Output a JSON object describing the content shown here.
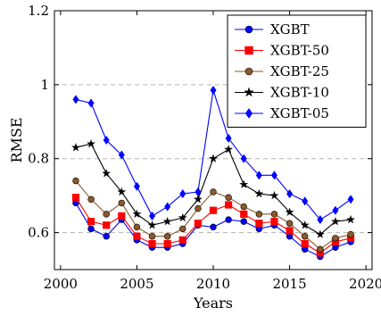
{
  "chart_data": {
    "type": "line",
    "title": "",
    "xlabel": "Years",
    "ylabel": "RMSE",
    "xlim": [
      1999.6,
      2020.4
    ],
    "ylim": [
      0.5,
      1.2
    ],
    "xticks": [
      2000,
      2005,
      2010,
      2015,
      2020
    ],
    "yticks": [
      0.6,
      0.8,
      1,
      1.2
    ],
    "ytick_labels": [
      "0.6",
      "0.8",
      "1",
      "1.2"
    ],
    "grid": "horizontal dashed",
    "legend_position": "top-right",
    "x": [
      2001,
      2002,
      2003,
      2004,
      2005,
      2006,
      2007,
      2008,
      2009,
      2010,
      2011,
      2012,
      2013,
      2014,
      2015,
      2016,
      2017,
      2018,
      2019
    ],
    "series": [
      {
        "name": "XGBT",
        "color": "#0000ff",
        "marker": "circle",
        "values": [
          0.68,
          0.61,
          0.59,
          0.635,
          0.58,
          0.56,
          0.56,
          0.57,
          0.62,
          0.615,
          0.635,
          0.63,
          0.61,
          0.62,
          0.59,
          0.555,
          0.535,
          0.56,
          0.575
        ]
      },
      {
        "name": "XGBT-50",
        "color": "#ff0000",
        "marker": "square",
        "values": [
          0.695,
          0.63,
          0.62,
          0.645,
          0.59,
          0.57,
          0.57,
          0.58,
          0.625,
          0.66,
          0.675,
          0.65,
          0.625,
          0.63,
          0.605,
          0.57,
          0.545,
          0.575,
          0.585
        ]
      },
      {
        "name": "XGBT-25",
        "color": "#8b5a2b",
        "marker": "circle",
        "values": [
          0.74,
          0.69,
          0.65,
          0.68,
          0.615,
          0.59,
          0.59,
          0.61,
          0.665,
          0.71,
          0.695,
          0.67,
          0.65,
          0.65,
          0.625,
          0.59,
          0.555,
          0.585,
          0.595
        ]
      },
      {
        "name": "XGBT-10",
        "color": "#000000",
        "marker": "star",
        "values": [
          0.83,
          0.84,
          0.76,
          0.71,
          0.65,
          0.62,
          0.63,
          0.64,
          0.69,
          0.8,
          0.825,
          0.73,
          0.705,
          0.7,
          0.655,
          0.62,
          0.595,
          0.63,
          0.635
        ]
      },
      {
        "name": "XGBT-05",
        "color": "#0000ff",
        "marker": "diamond",
        "values": [
          0.96,
          0.95,
          0.85,
          0.81,
          0.725,
          0.645,
          0.67,
          0.705,
          0.71,
          0.985,
          0.855,
          0.8,
          0.755,
          0.755,
          0.705,
          0.685,
          0.635,
          0.66,
          0.69
        ]
      }
    ]
  }
}
